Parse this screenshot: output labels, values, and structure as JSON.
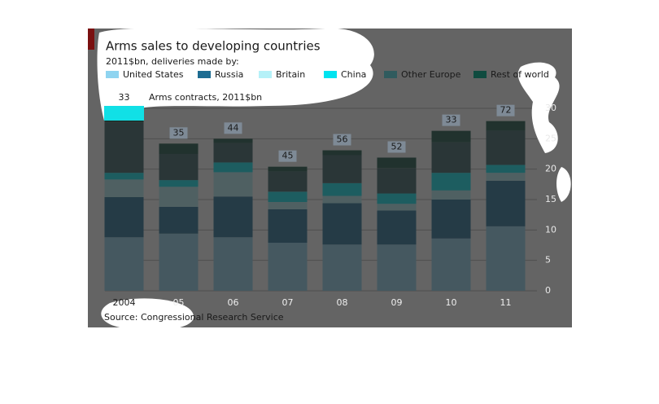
{
  "chart_data": {
    "type": "bar",
    "stacked": true,
    "title": "Arms sales to developing countries",
    "subtitle": "2011$bn, deliveries made by:",
    "source": "Source: Congressional Research Service",
    "categories": [
      "2004",
      "05",
      "06",
      "07",
      "08",
      "09",
      "10",
      "11"
    ],
    "series": [
      {
        "name": "United States",
        "color": "#8fd4f0",
        "values": [
          8.8,
          9.4,
          8.8,
          7.9,
          7.6,
          7.6,
          8.6,
          10.6
        ]
      },
      {
        "name": "Russia",
        "color": "#1d6c92",
        "values": [
          6.6,
          4.4,
          6.7,
          5.5,
          6.8,
          5.6,
          6.4,
          7.5
        ]
      },
      {
        "name": "Britain",
        "color": "#b5f1f8",
        "values": [
          2.9,
          3.3,
          4.0,
          1.2,
          1.2,
          1.1,
          1.5,
          1.3
        ]
      },
      {
        "name": "China",
        "color": "#00e4f0",
        "values": [
          1.1,
          1.1,
          1.6,
          1.7,
          2.1,
          1.7,
          2.9,
          1.3
        ]
      },
      {
        "name": "Other Europe",
        "color": "#305b5e",
        "values": [
          8.3,
          4.3,
          3.2,
          3.3,
          4.6,
          4.2,
          5.0,
          5.6
        ]
      },
      {
        "name": "Rest of world",
        "color": "#0f4b3f",
        "values": [
          2.3,
          1.7,
          0.7,
          0.8,
          0.8,
          1.7,
          1.9,
          1.6
        ]
      }
    ],
    "contracts": {
      "label": "Arms contracts, 2011$bn",
      "values": [
        33,
        35,
        44,
        45,
        56,
        52,
        33,
        72
      ]
    },
    "ylim": [
      0,
      30
    ],
    "yticks": [
      0,
      5,
      10,
      15,
      20,
      25,
      30
    ],
    "grid": true
  }
}
